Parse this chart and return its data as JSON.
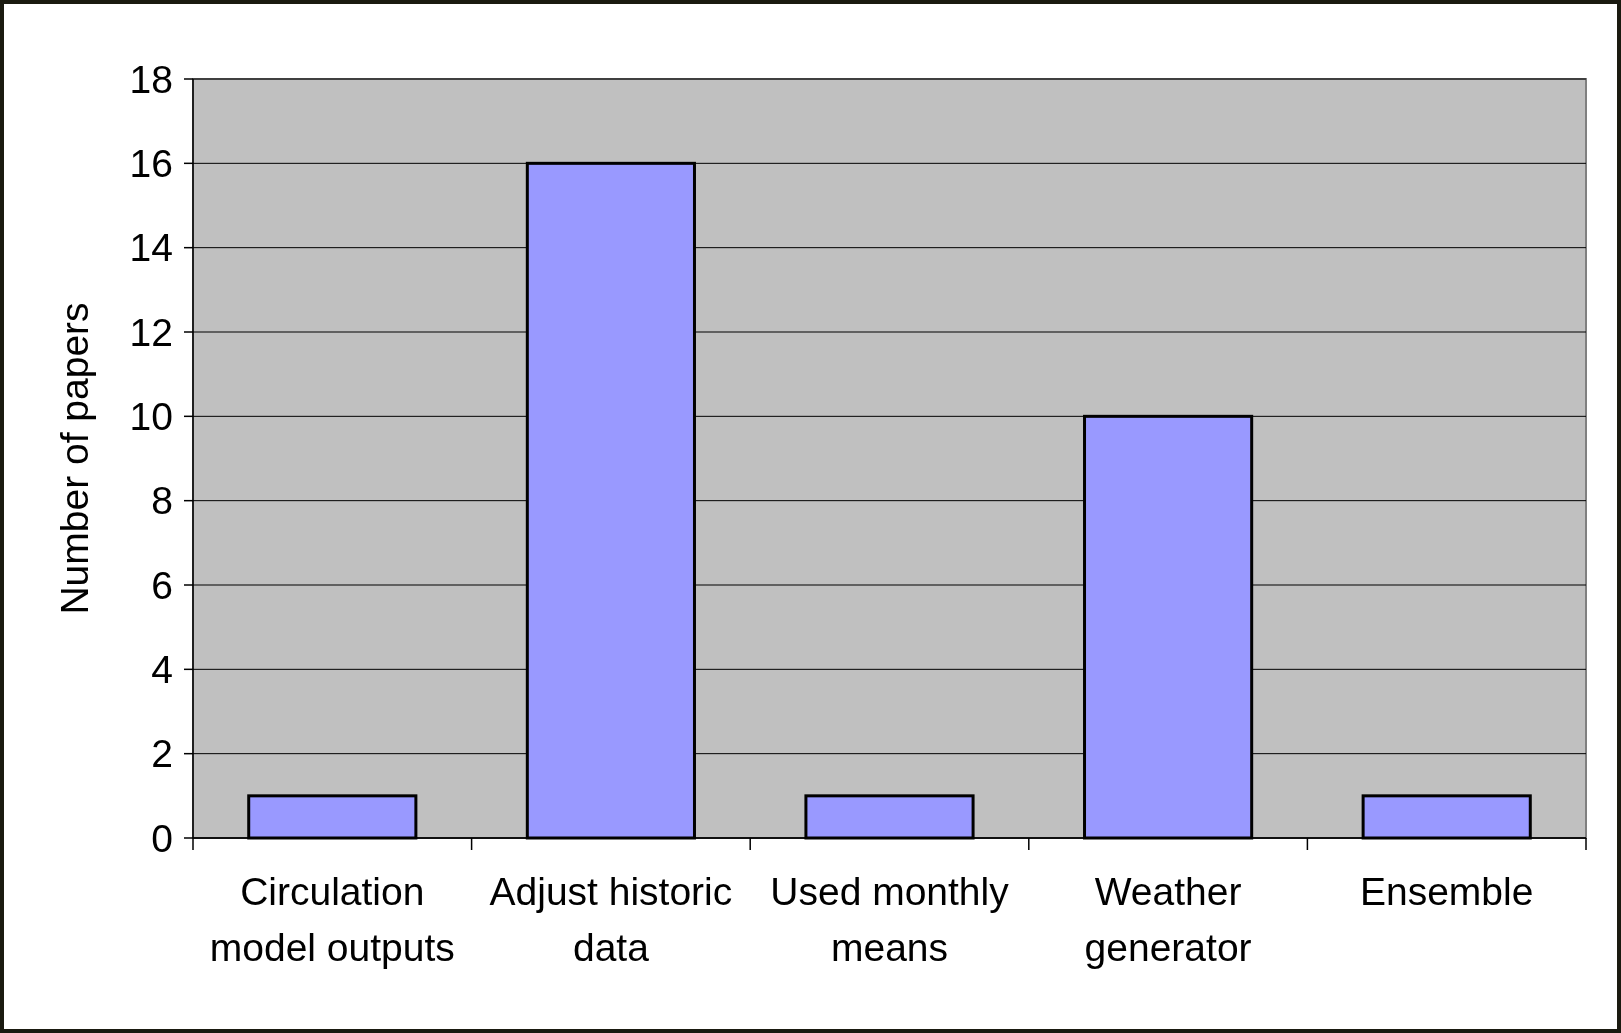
{
  "chart_data": {
    "type": "bar",
    "ylabel": "Number of papers",
    "categories": [
      "Circulation model outputs",
      "Adjust historic data",
      "Used monthly means",
      "Weather generator",
      "Ensemble"
    ],
    "values": [
      1,
      16,
      1,
      10,
      1
    ],
    "color": "#9999ff",
    "ylim": [
      0,
      18
    ],
    "yticks": [
      0,
      2,
      4,
      6,
      8,
      10,
      12,
      14,
      16,
      18
    ],
    "grid": "y"
  }
}
